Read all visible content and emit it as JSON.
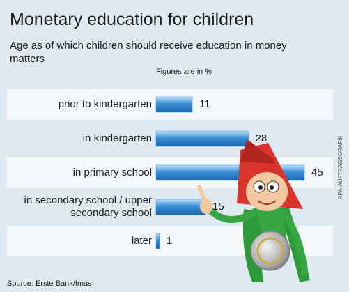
{
  "chart_data": {
    "type": "bar",
    "orientation": "horizontal",
    "title": "Monetary education for children",
    "subtitle": "Age as of which children should receive education in money matters",
    "note": "Figures are in %",
    "categories": [
      "prior to kindergarten",
      "in kindergarten",
      "in primary school",
      "in secondary school / upper secondary school",
      "later"
    ],
    "values": [
      11,
      28,
      45,
      15,
      1
    ],
    "color": "#3a8fd6",
    "source": "Source: Erste Bank/Imas",
    "credit": "APA-AUFTRAGSGRAFIK"
  }
}
